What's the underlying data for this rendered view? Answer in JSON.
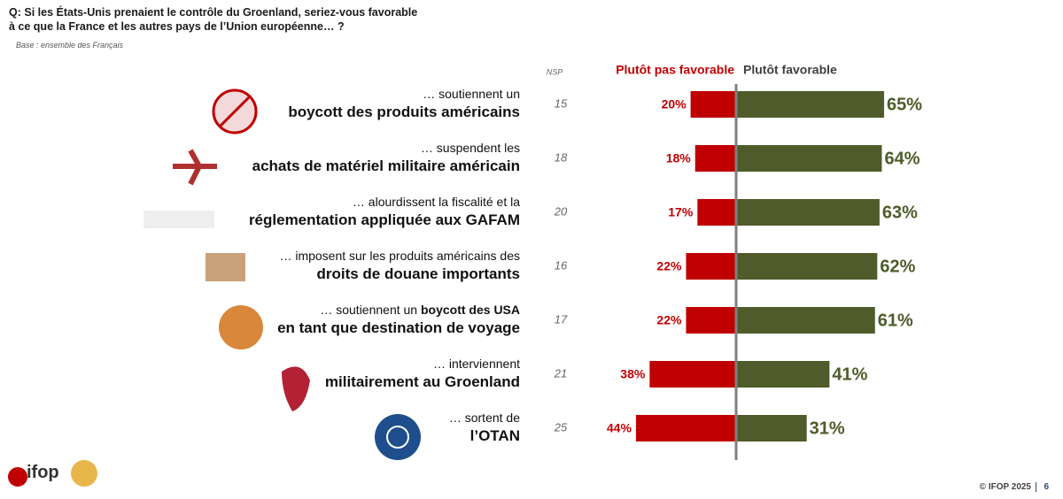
{
  "chart_data": {
    "type": "diverging-bar",
    "title": "Q: Si les États-Unis prenaient le contrôle du Groenland, seriez-vous favorable à ce que la France et les autres pays de l’Union européenne… ?",
    "subtitle": "Base : ensemble des Français",
    "categories": [
      [
        [
          {
            "text": "… soutiennent un",
            "bold": false
          }
        ],
        [
          {
            "text": "boycott des produits américains",
            "bold": true
          }
        ]
      ],
      [
        [
          {
            "text": "… suspendent les",
            "bold": false
          }
        ],
        [
          {
            "text": "achats de matériel militaire américain",
            "bold": true
          }
        ]
      ],
      [
        [
          {
            "text": "… alourdissent la fiscalité et la",
            "bold": false
          }
        ],
        [
          {
            "text": "réglementation appliquée aux GAFAM",
            "bold": true
          }
        ]
      ],
      [
        [
          {
            "text": "… imposent sur les produits américains des",
            "bold": false
          }
        ],
        [
          {
            "text": "droits de douane importants",
            "bold": true
          }
        ]
      ],
      [
        [
          {
            "text": "… soutiennent un ",
            "bold": false
          },
          {
            "text": "boycott des USA",
            "bold": true
          }
        ],
        [
          {
            "text": "en tant que destination de voyage",
            "bold": true
          }
        ]
      ],
      [
        [
          {
            "text": "… interviennent",
            "bold": false
          }
        ],
        [
          {
            "text": "militairement au Groenland",
            "bold": true
          }
        ]
      ],
      [
        [
          {
            "text": "… sortent de",
            "bold": false
          }
        ],
        [
          {
            "text": "l’OTAN",
            "bold": true
          }
        ]
      ]
    ],
    "nsp": {
      "label": "NSP",
      "values": [
        15,
        18,
        20,
        16,
        17,
        21,
        25
      ]
    },
    "series": [
      {
        "name": "Plutôt pas favorable",
        "color": "#c00000",
        "side": "left",
        "values": [
          20,
          18,
          17,
          22,
          22,
          38,
          44
        ],
        "value_labels": [
          "20%",
          "18%",
          "17%",
          "22%",
          "22%",
          "38%",
          "44%"
        ]
      },
      {
        "name": "Plutôt favorable",
        "color": "#4f5b2a",
        "side": "right",
        "values": [
          65,
          64,
          63,
          62,
          61,
          41,
          31
        ],
        "value_labels": [
          "65%",
          "64%",
          "63%",
          "62%",
          "61%",
          "41%",
          "31%"
        ]
      }
    ]
  },
  "footer": "© IFOP 2025",
  "page_number": "6",
  "logo": "ifop"
}
